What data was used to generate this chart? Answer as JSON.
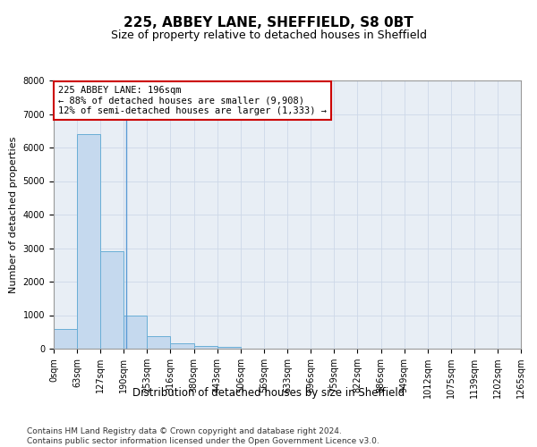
{
  "title": "225, ABBEY LANE, SHEFFIELD, S8 0BT",
  "subtitle": "Size of property relative to detached houses in Sheffield",
  "xlabel": "Distribution of detached houses by size in Sheffield",
  "ylabel": "Number of detached properties",
  "bar_values": [
    600,
    6400,
    2900,
    1000,
    380,
    150,
    80,
    50,
    0,
    0,
    0,
    0,
    0,
    0,
    0,
    0,
    0,
    0,
    0,
    0
  ],
  "bin_edges": [
    0,
    63,
    127,
    190,
    253,
    316,
    380,
    443,
    506,
    569,
    633,
    696,
    759,
    822,
    886,
    949,
    1012,
    1075,
    1139,
    1202,
    1265
  ],
  "x_tick_labels": [
    "0sqm",
    "63sqm",
    "127sqm",
    "190sqm",
    "253sqm",
    "316sqm",
    "380sqm",
    "443sqm",
    "506sqm",
    "569sqm",
    "633sqm",
    "696sqm",
    "759sqm",
    "822sqm",
    "886sqm",
    "949sqm",
    "1012sqm",
    "1075sqm",
    "1139sqm",
    "1202sqm",
    "1265sqm"
  ],
  "bar_color": "#c5d9ee",
  "bar_edge_color": "#6aaed6",
  "ylim": [
    0,
    8000
  ],
  "yticks": [
    0,
    1000,
    2000,
    3000,
    4000,
    5000,
    6000,
    7000,
    8000
  ],
  "property_size": 196,
  "vline_color": "#5b9bd5",
  "annotation_text": "225 ABBEY LANE: 196sqm\n← 88% of detached houses are smaller (9,908)\n12% of semi-detached houses are larger (1,333) →",
  "annotation_box_color": "#ffffff",
  "annotation_box_edge_color": "#cc0000",
  "grid_color": "#cdd8e8",
  "background_color": "#e8eef5",
  "footer_text": "Contains HM Land Registry data © Crown copyright and database right 2024.\nContains public sector information licensed under the Open Government Licence v3.0.",
  "title_fontsize": 11,
  "subtitle_fontsize": 9,
  "tick_fontsize": 7,
  "ylabel_fontsize": 8,
  "xlabel_fontsize": 8.5,
  "footer_fontsize": 6.5,
  "ann_fontsize": 7.5
}
